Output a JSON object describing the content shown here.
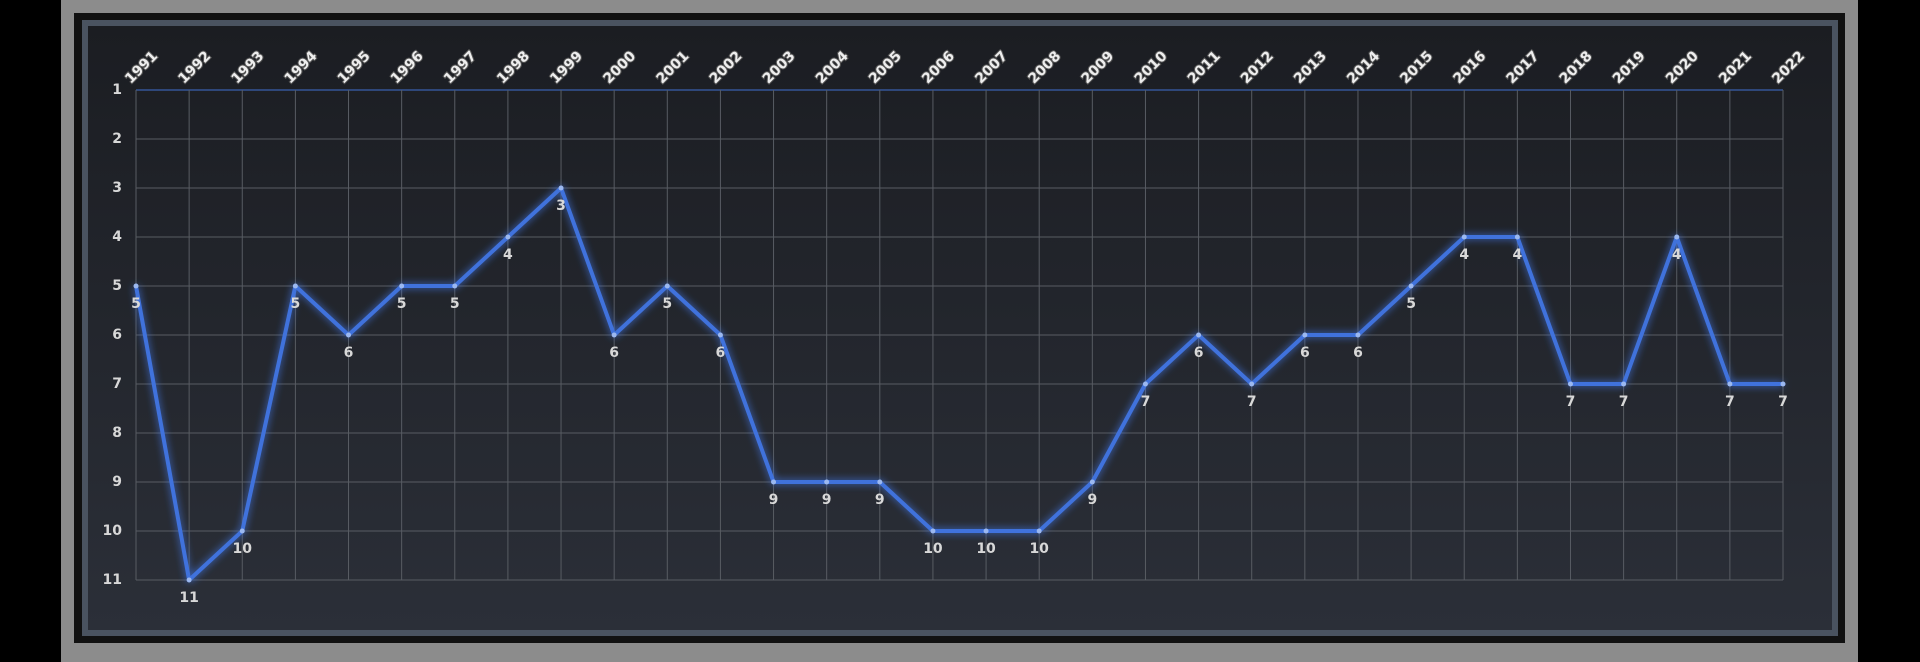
{
  "chart_data": {
    "type": "line",
    "categories": [
      "1991",
      "1992",
      "1993",
      "1994",
      "1995",
      "1996",
      "1997",
      "1998",
      "1999",
      "2000",
      "2001",
      "2002",
      "2003",
      "2004",
      "2005",
      "2006",
      "2007",
      "2008",
      "2009",
      "2010",
      "2011",
      "2012",
      "2013",
      "2014",
      "2015",
      "2016",
      "2017",
      "2018",
      "2019",
      "2020",
      "2021",
      "2022"
    ],
    "values": [
      5,
      11,
      10,
      5,
      6,
      5,
      5,
      4,
      3,
      6,
      5,
      6,
      9,
      9,
      9,
      10,
      10,
      10,
      9,
      7,
      6,
      7,
      6,
      6,
      5,
      4,
      4,
      7,
      7,
      4,
      7,
      7
    ],
    "color": "#3f72dc",
    "ylim": [
      11,
      1
    ],
    "yticks": [
      1,
      2,
      3,
      4,
      5,
      6,
      7,
      8,
      9,
      10,
      11
    ],
    "grid": true
  }
}
